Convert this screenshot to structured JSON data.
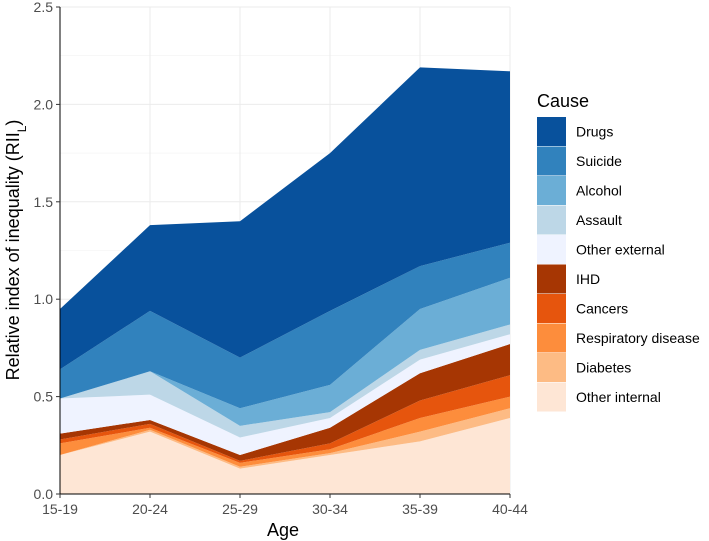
{
  "chart_data": {
    "type": "area",
    "stacked": true,
    "x": [
      "15-19",
      "20-24",
      "25-29",
      "30-34",
      "35-39",
      "40-44"
    ],
    "xlabel": "Age",
    "ylabel": "Relative index of inequality (RII",
    "ylabel_subscript": "L",
    "ylabel_close": ")",
    "ylim": [
      0,
      2.5
    ],
    "yticks": [
      "0.0",
      "0.5",
      "1.0",
      "1.5",
      "2.0",
      "2.5"
    ],
    "grid": true,
    "legend_position": "right",
    "legend_title": "Cause",
    "series": [
      {
        "name": "Other internal",
        "color": "#fee6d5",
        "values": [
          0.2,
          0.32,
          0.13,
          0.2,
          0.27,
          0.39
        ]
      },
      {
        "name": "Diabetes",
        "color": "#fdbb84",
        "values": [
          0.0,
          0.01,
          0.01,
          0.01,
          0.05,
          0.05
        ]
      },
      {
        "name": "Respiratory disease",
        "color": "#fd8d3c",
        "values": [
          0.06,
          0.01,
          0.02,
          0.02,
          0.07,
          0.06
        ]
      },
      {
        "name": "Cancers",
        "color": "#e6550d",
        "values": [
          0.02,
          0.02,
          0.01,
          0.03,
          0.09,
          0.11
        ]
      },
      {
        "name": "IHD",
        "color": "#a63603",
        "values": [
          0.03,
          0.02,
          0.03,
          0.08,
          0.14,
          0.16
        ]
      },
      {
        "name": "Other external",
        "color": "#eff3ff",
        "values": [
          0.18,
          0.13,
          0.09,
          0.05,
          0.07,
          0.05
        ]
      },
      {
        "name": "Assault",
        "color": "#bdd7e7",
        "values": [
          0.0,
          0.12,
          0.06,
          0.03,
          0.05,
          0.05
        ]
      },
      {
        "name": "Alcohol",
        "color": "#6baed6",
        "values": [
          0.0,
          0.0,
          0.09,
          0.14,
          0.21,
          0.24
        ]
      },
      {
        "name": "Suicide",
        "color": "#3182bd",
        "values": [
          0.15,
          0.31,
          0.26,
          0.38,
          0.22,
          0.18
        ]
      },
      {
        "name": "Drugs",
        "color": "#08519c",
        "values": [
          0.31,
          0.44,
          0.7,
          0.81,
          1.02,
          0.88
        ]
      }
    ]
  }
}
